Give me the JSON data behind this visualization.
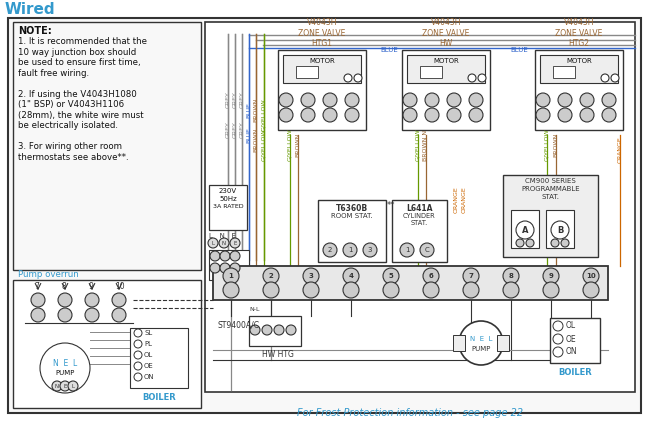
{
  "title": "Wired",
  "bg_color": "#ffffff",
  "note_text_bold": "NOTE:",
  "note_text": [
    "1. It is recommended that the",
    "10 way junction box should",
    "be used to ensure first time,",
    "fault free wiring.",
    "",
    "2. If using the V4043H1080",
    "(1\" BSP) or V4043H1106",
    "(28mm), the white wire must",
    "be electrically isolated.",
    "",
    "3. For wiring other room",
    "thermostats see above**."
  ],
  "pump_overrun_label": "Pump overrun",
  "frost_text": "For Frost Protection information - see page 22",
  "grey": "#888888",
  "blue": "#3366CC",
  "brown": "#996633",
  "gyellow": "#669900",
  "orange": "#CC6600",
  "black": "#111111",
  "cyan_text": "#3399CC",
  "dark": "#333333"
}
